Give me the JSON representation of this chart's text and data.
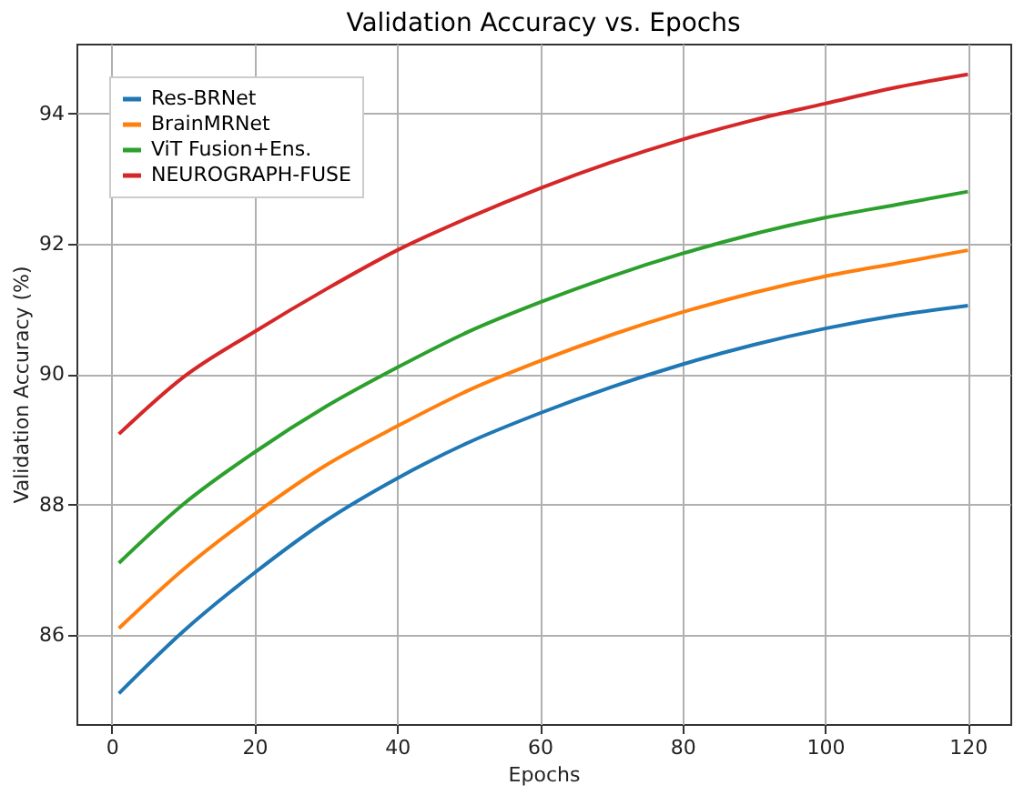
{
  "chart_data": {
    "type": "line",
    "title": "Validation Accuracy vs. Epochs",
    "xlabel": "Epochs",
    "ylabel": "Validation Accuracy (%)",
    "x": [
      1,
      10,
      20,
      30,
      40,
      50,
      60,
      70,
      80,
      90,
      100,
      110,
      120
    ],
    "series": [
      {
        "name": "Res-BRNet",
        "color": "#1f77b4",
        "values": [
          85.1,
          86.05,
          86.95,
          87.75,
          88.4,
          88.95,
          89.4,
          89.8,
          90.15,
          90.45,
          90.7,
          90.9,
          91.05
        ]
      },
      {
        "name": "BrainMRNet",
        "color": "#ff7f0e",
        "values": [
          86.1,
          87.0,
          87.85,
          88.6,
          89.2,
          89.75,
          90.2,
          90.6,
          90.95,
          91.25,
          91.5,
          91.7,
          91.9
        ]
      },
      {
        "name": "ViT Fusion+Ens.",
        "color": "#2ca02c",
        "values": [
          87.1,
          88.0,
          88.8,
          89.5,
          90.1,
          90.65,
          91.1,
          91.5,
          91.85,
          92.15,
          92.4,
          92.6,
          92.8
        ]
      },
      {
        "name": "NEUROGRAPH-FUSE",
        "color": "#d62728",
        "values": [
          89.08,
          89.95,
          90.65,
          91.3,
          91.9,
          92.4,
          92.85,
          93.25,
          93.6,
          93.9,
          94.15,
          94.4,
          94.6
        ]
      }
    ],
    "xlim": [
      -4.95,
      125.95
    ],
    "xticks": [
      0,
      20,
      40,
      60,
      80,
      100,
      120
    ],
    "ylim": [
      84.63,
      95.07
    ],
    "yticks": [
      86,
      88,
      90,
      92,
      94
    ],
    "grid": true,
    "legend": "top left",
    "marker": "none",
    "line_style": "solid"
  }
}
